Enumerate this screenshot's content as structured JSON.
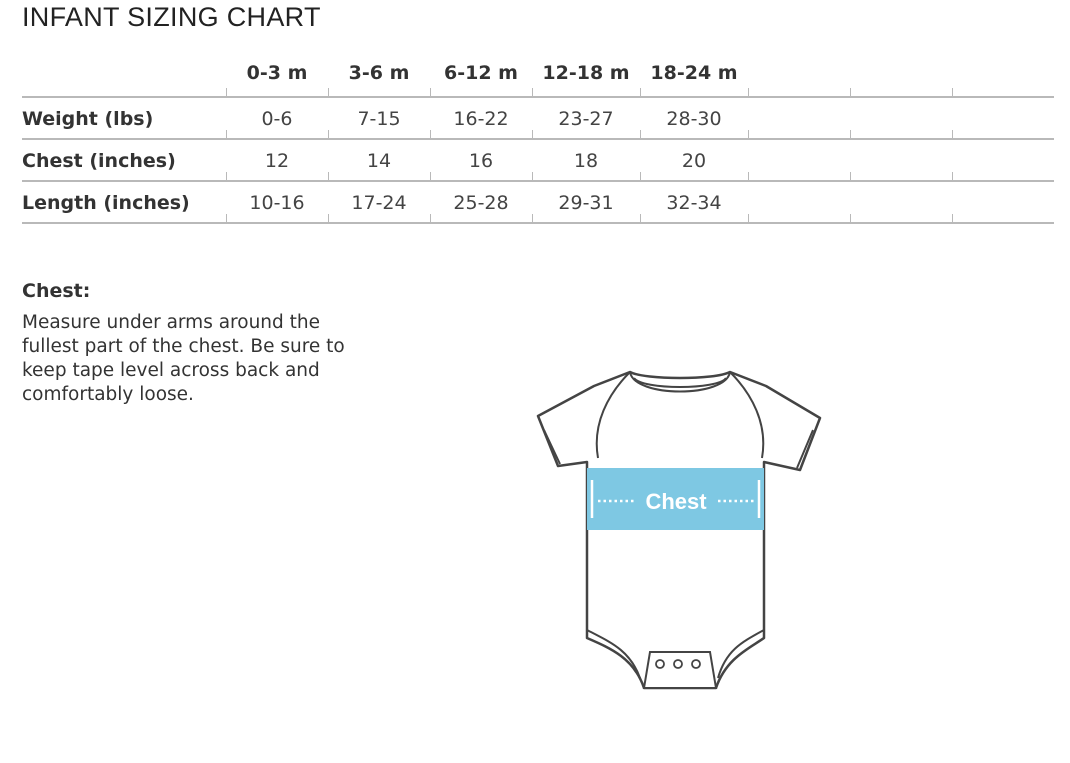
{
  "title": "INFANT SIZING CHART",
  "table": {
    "headers": [
      "0-3 m",
      "3-6 m",
      "6-12 m",
      "12-18 m",
      "18-24 m"
    ],
    "rows": [
      {
        "label": "Weight (lbs)",
        "values": [
          "0-6",
          "7-15",
          "16-22",
          "23-27",
          "28-30"
        ]
      },
      {
        "label": "Chest (inches)",
        "values": [
          "12",
          "14",
          "16",
          "18",
          "20"
        ]
      },
      {
        "label": "Length (inches)",
        "values": [
          "10-16",
          "17-24",
          "25-28",
          "29-31",
          "32-34"
        ]
      }
    ]
  },
  "measure": {
    "heading": "Chest:",
    "description": "Measure under arms around the fullest part of the chest. Be sure to keep tape level across back and comfortably loose."
  },
  "diagram": {
    "band_label": "Chest",
    "band_color": "#7ec8e3"
  }
}
